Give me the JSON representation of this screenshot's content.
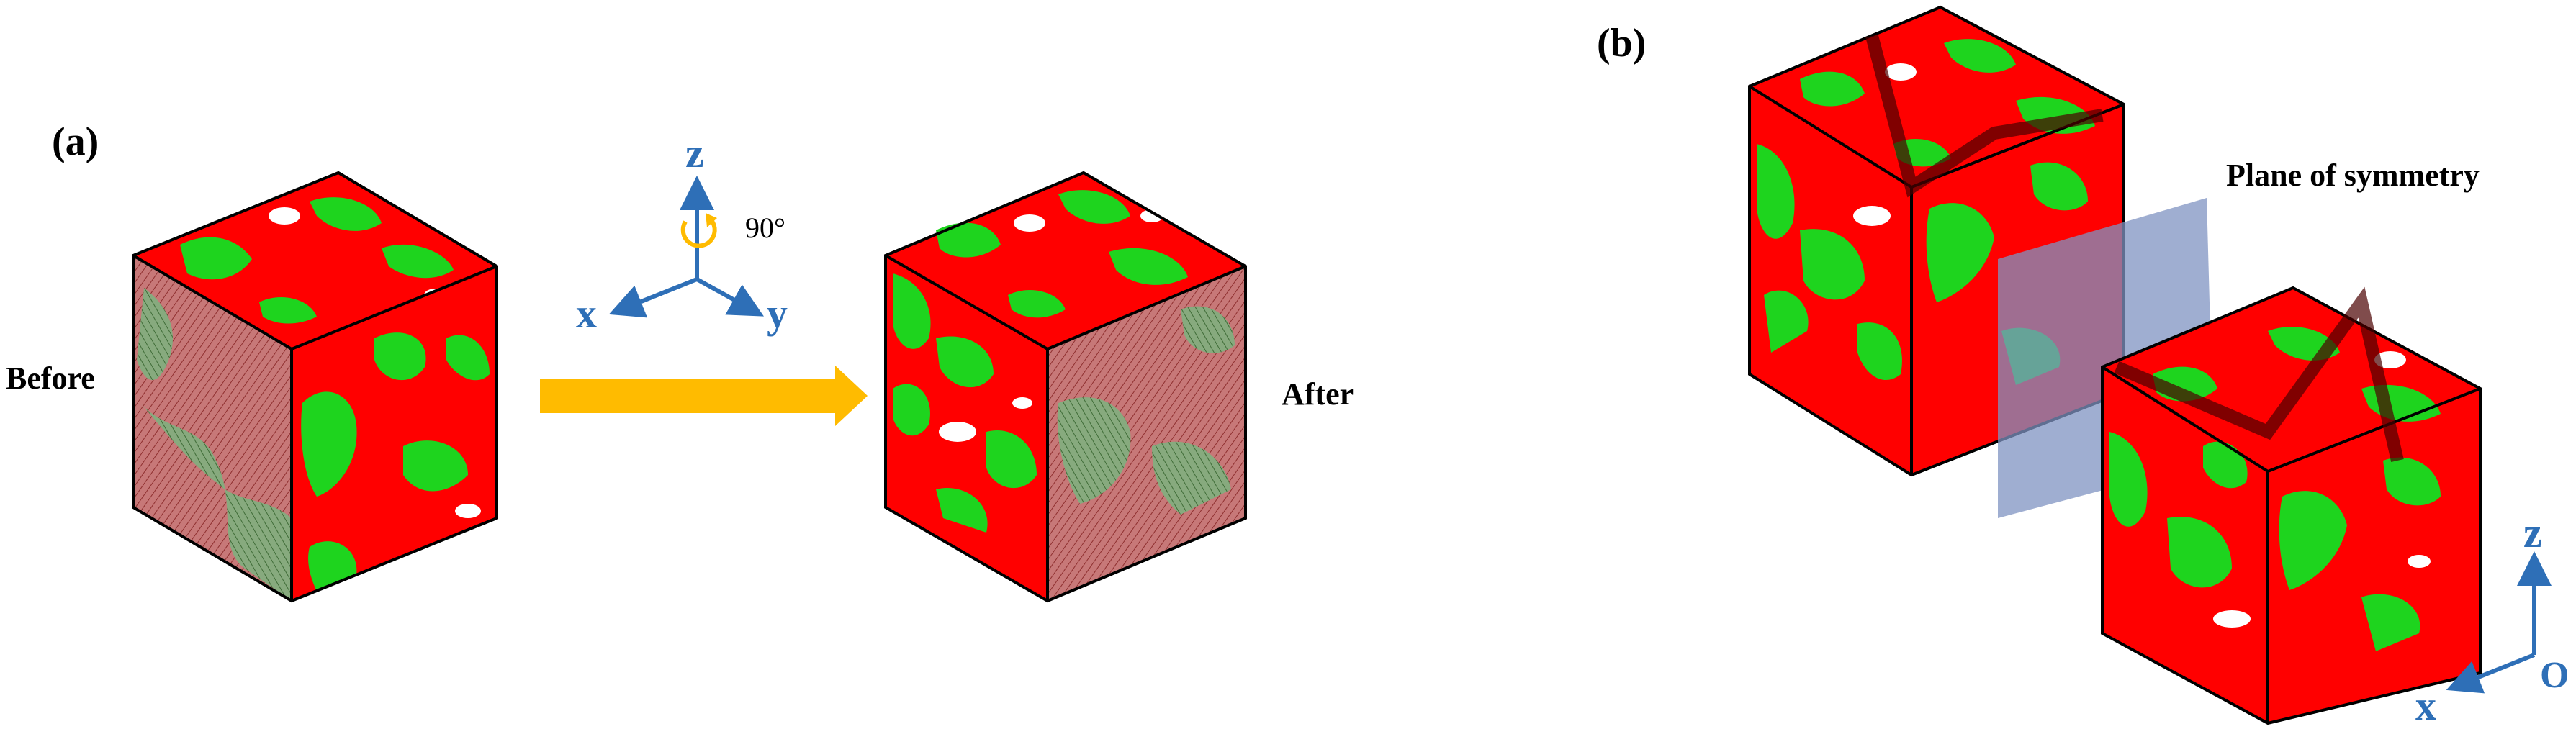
{
  "panel_a": {
    "label": "(a)",
    "before_label": "Before",
    "after_label": "After",
    "rotation_angle": "90°",
    "axes": {
      "z": "z",
      "x": "x",
      "y": "y"
    }
  },
  "panel_b": {
    "label": "(b)",
    "plane_label": "Plane of symmetry",
    "axes": {
      "z": "z",
      "x": "x",
      "origin": "O"
    }
  },
  "colors": {
    "phase_red": "#ff0000",
    "phase_green": "#1ed41e",
    "axis_blue": "#2e6fb7",
    "arrow_orange": "#ffbb00",
    "plane_blue": "#7f93c2",
    "hatch_red": "#b85a5a",
    "hatch_green": "#6d9a64"
  }
}
